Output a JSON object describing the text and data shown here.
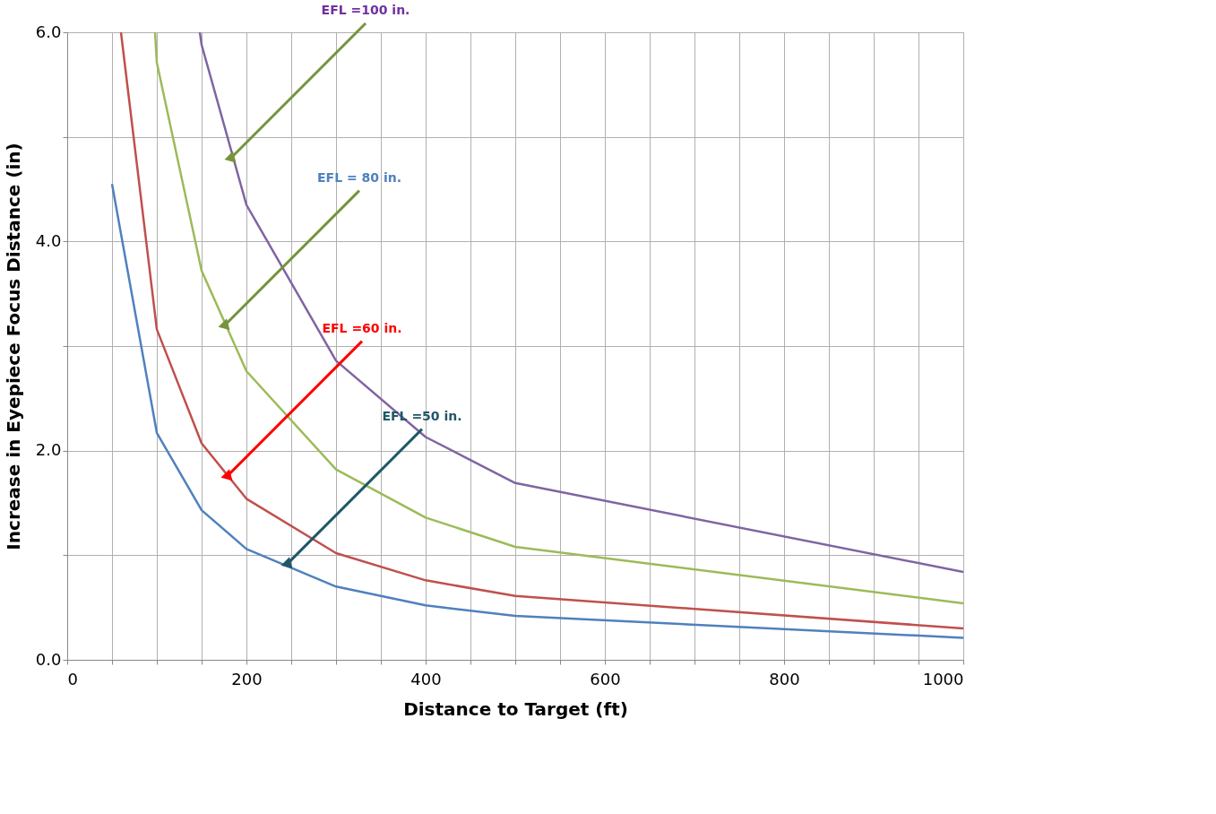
{
  "chart_data": {
    "type": "line",
    "xlabel": "Distance to Target  (ft)",
    "ylabel": "Increase in Eyepiece Focus Distance (in)",
    "xlim": [
      0,
      1000
    ],
    "ylim": [
      0,
      6
    ],
    "xticks": [
      0,
      {
        "value": 50,
        "label": null
      },
      {
        "value": 100,
        "label": null
      },
      {
        "value": 150,
        "label": null
      },
      200,
      {
        "value": 250,
        "label": null
      },
      {
        "value": 300,
        "label": null
      },
      {
        "value": 350,
        "label": null
      },
      400,
      {
        "value": 450,
        "label": null
      },
      {
        "value": 500,
        "label": null
      },
      {
        "value": 550,
        "label": null
      },
      600,
      {
        "value": 650,
        "label": null
      },
      {
        "value": 700,
        "label": null
      },
      {
        "value": 750,
        "label": null
      },
      800,
      {
        "value": 850,
        "label": null
      },
      {
        "value": 900,
        "label": null
      },
      {
        "value": 950,
        "label": null
      },
      1000
    ],
    "yticks": [
      {
        "value": 0,
        "label": "0.0"
      },
      {
        "value": 1,
        "label": null
      },
      {
        "value": 2,
        "label": "2.0"
      },
      {
        "value": 3,
        "label": null
      },
      {
        "value": 4,
        "label": "4.0"
      },
      {
        "value": 5,
        "label": null
      },
      {
        "value": 6,
        "label": "6.0"
      }
    ],
    "grid": true,
    "marker": "none",
    "line_style": "solid",
    "series": [
      {
        "color": "#4f81bd",
        "x": [
          50,
          100,
          150,
          200,
          300,
          400,
          500,
          1000
        ],
        "values": [
          4.55,
          2.17,
          1.43,
          1.06,
          0.7,
          0.52,
          0.42,
          0.21
        ]
      },
      {
        "color": "#c0504d",
        "x": [
          60,
          100,
          150,
          200,
          300,
          400,
          500,
          1000
        ],
        "values": [
          6.0,
          3.16,
          2.07,
          1.54,
          1.02,
          0.76,
          0.61,
          0.3
        ]
      },
      {
        "color": "#9bbb59",
        "x": [
          98,
          100,
          150,
          200,
          300,
          400,
          500,
          1000
        ],
        "values": [
          6.0,
          5.71,
          3.72,
          2.76,
          1.82,
          1.36,
          1.08,
          0.54
        ]
      },
      {
        "color": "#8064a2",
        "x": [
          148,
          150,
          200,
          300,
          400,
          500,
          1000
        ],
        "values": [
          6.0,
          5.88,
          4.35,
          2.86,
          2.13,
          1.69,
          0.84
        ]
      }
    ],
    "annotations": [
      {
        "text": "EFL =100 in.",
        "x": 183,
        "y": 4.8
      },
      {
        "text": "EFL = 80 in.",
        "x": 176,
        "y": 3.2
      },
      {
        "text": "EFL =60 in.",
        "x": 179,
        "y": 1.76
      },
      {
        "text": "EFL =50 in.",
        "x": 246,
        "y": 0.92
      }
    ]
  }
}
